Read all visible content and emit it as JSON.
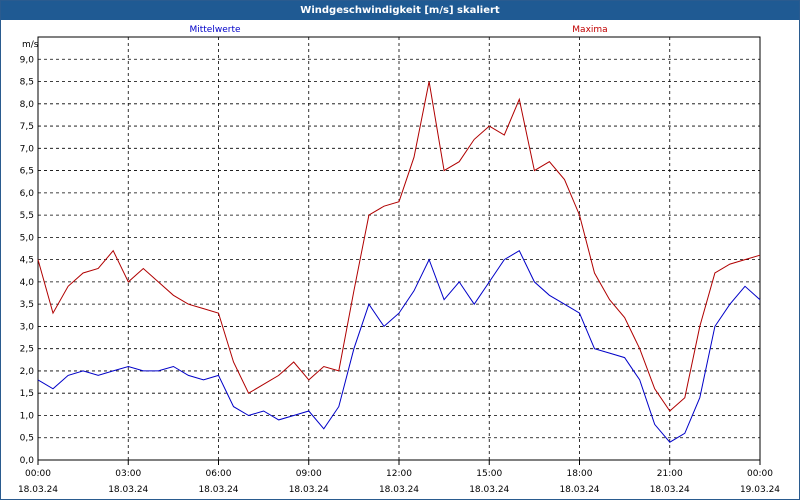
{
  "window": {
    "title": "Windgeschwindigkeit [m/s] skaliert"
  },
  "colors": {
    "mean": "#0000c8",
    "max": "#b00000",
    "grid": "#000000",
    "titlebar": "#1f5a93"
  },
  "chart_data": {
    "type": "line",
    "title": "Windgeschwindigkeit [m/s] skaliert",
    "ylabel": "m/s",
    "xlabel": "",
    "ylim": [
      0,
      9.5
    ],
    "yticks": [
      0.0,
      0.5,
      1.0,
      1.5,
      2.0,
      2.5,
      3.0,
      3.5,
      4.0,
      4.5,
      5.0,
      5.5,
      6.0,
      6.5,
      7.0,
      7.5,
      8.0,
      8.5,
      9.0
    ],
    "ytick_labels": [
      "0,0",
      "0,5",
      "1,0",
      "1,5",
      "2,0",
      "2,5",
      "3,0",
      "3,5",
      "4,0",
      "4,5",
      "5,0",
      "5,5",
      "6,0",
      "6,5",
      "7,0",
      "7,5",
      "8,0",
      "8,5",
      "9,0"
    ],
    "xticks": [
      {
        "time": "00:00",
        "date": "18.03.24"
      },
      {
        "time": "03:00",
        "date": "18.03.24"
      },
      {
        "time": "06:00",
        "date": "18.03.24"
      },
      {
        "time": "09:00",
        "date": "18.03.24"
      },
      {
        "time": "12:00",
        "date": "18.03.24"
      },
      {
        "time": "15:00",
        "date": "18.03.24"
      },
      {
        "time": "18:00",
        "date": "18.03.24"
      },
      {
        "time": "21:00",
        "date": "18.03.24"
      },
      {
        "time": "00:00",
        "date": "19.03.24"
      }
    ],
    "grid": true,
    "x": [
      "00:00",
      "00:30",
      "01:00",
      "01:30",
      "02:00",
      "02:30",
      "03:00",
      "03:30",
      "04:00",
      "04:30",
      "05:00",
      "05:30",
      "06:00",
      "06:30",
      "07:00",
      "07:30",
      "08:00",
      "08:30",
      "09:00",
      "09:30",
      "10:00",
      "10:30",
      "11:00",
      "11:30",
      "12:00",
      "12:30",
      "13:00",
      "13:30",
      "14:00",
      "14:30",
      "15:00",
      "15:30",
      "16:00",
      "16:30",
      "17:00",
      "17:30",
      "18:00",
      "18:30",
      "19:00",
      "19:30",
      "20:00",
      "20:30",
      "21:00",
      "21:30",
      "22:00",
      "22:30",
      "23:00",
      "23:30",
      "00:00"
    ],
    "series": [
      {
        "name": "Mittelwerte",
        "values": [
          1.8,
          1.6,
          1.9,
          2.0,
          1.9,
          2.0,
          2.1,
          2.0,
          2.0,
          2.1,
          1.9,
          1.8,
          1.9,
          1.2,
          1.0,
          1.1,
          0.9,
          1.0,
          1.1,
          0.7,
          1.2,
          2.5,
          3.5,
          3.0,
          3.3,
          3.8,
          4.5,
          3.6,
          4.0,
          3.5,
          4.0,
          4.5,
          4.7,
          4.0,
          3.7,
          3.5,
          3.3,
          2.5,
          2.4,
          2.3,
          1.8,
          0.8,
          0.4,
          0.6,
          1.4,
          3.0,
          3.5,
          3.9,
          3.6
        ]
      },
      {
        "name": "Maxima",
        "values": [
          4.5,
          3.3,
          3.9,
          4.2,
          4.3,
          4.7,
          4.0,
          4.3,
          4.0,
          3.7,
          3.5,
          3.4,
          3.3,
          2.2,
          1.5,
          1.7,
          1.9,
          2.2,
          1.8,
          2.1,
          2.0,
          3.8,
          5.5,
          5.7,
          5.8,
          6.8,
          8.5,
          6.5,
          6.7,
          7.2,
          7.5,
          7.3,
          8.1,
          6.5,
          6.7,
          6.3,
          5.5,
          4.2,
          3.6,
          3.2,
          2.5,
          1.6,
          1.1,
          1.4,
          3.0,
          4.2,
          4.4,
          4.5,
          4.6
        ]
      }
    ]
  }
}
